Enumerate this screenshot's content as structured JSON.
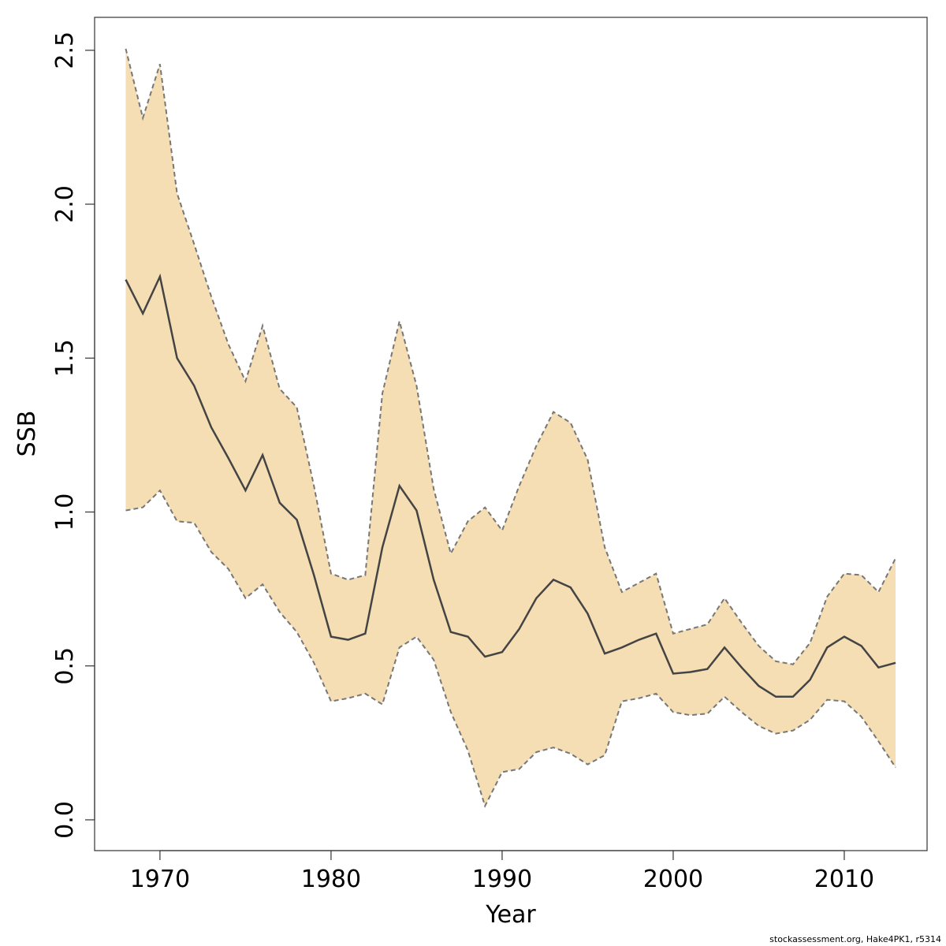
{
  "chart_data": {
    "type": "line",
    "x_label": "Year",
    "y_label": "SSB",
    "caption": "stockassessment.org, Hake4PK1, r5314",
    "x": [
      1968,
      1969,
      1970,
      1971,
      1972,
      1973,
      1974,
      1975,
      1976,
      1977,
      1978,
      1979,
      1980,
      1981,
      1982,
      1983,
      1984,
      1985,
      1986,
      1987,
      1988,
      1989,
      1990,
      1991,
      1992,
      1993,
      1994,
      1995,
      1996,
      1997,
      1998,
      1999,
      2000,
      2001,
      2002,
      2003,
      2004,
      2005,
      2006,
      2007,
      2008,
      2009,
      2010,
      2011,
      2012,
      2013
    ],
    "values": [
      1.755,
      1.645,
      1.765,
      1.5,
      1.41,
      1.275,
      1.175,
      1.07,
      1.185,
      1.03,
      0.975,
      0.795,
      0.595,
      0.585,
      0.605,
      0.885,
      1.085,
      1.005,
      0.78,
      0.61,
      0.595,
      0.53,
      0.545,
      0.62,
      0.72,
      0.78,
      0.755,
      0.67,
      0.54,
      0.56,
      0.585,
      0.605,
      0.475,
      0.48,
      0.49,
      0.56,
      0.495,
      0.435,
      0.4,
      0.4,
      0.455,
      0.56,
      0.595,
      0.565,
      0.495,
      0.51
    ],
    "upper": [
      2.505,
      2.28,
      2.455,
      2.035,
      1.87,
      1.7,
      1.545,
      1.425,
      1.605,
      1.4,
      1.34,
      1.085,
      0.8,
      0.78,
      0.795,
      1.385,
      1.62,
      1.41,
      1.075,
      0.865,
      0.97,
      1.015,
      0.94,
      1.085,
      1.215,
      1.325,
      1.29,
      1.17,
      0.885,
      0.74,
      0.77,
      0.8,
      0.605,
      0.62,
      0.635,
      0.72,
      0.64,
      0.565,
      0.515,
      0.505,
      0.575,
      0.725,
      0.8,
      0.795,
      0.74,
      0.85
    ],
    "lower": [
      1.005,
      1.015,
      1.07,
      0.97,
      0.965,
      0.87,
      0.815,
      0.72,
      0.765,
      0.675,
      0.61,
      0.51,
      0.385,
      0.395,
      0.41,
      0.375,
      0.56,
      0.595,
      0.52,
      0.35,
      0.225,
      0.045,
      0.155,
      0.165,
      0.22,
      0.235,
      0.215,
      0.18,
      0.21,
      0.385,
      0.395,
      0.41,
      0.35,
      0.34,
      0.345,
      0.4,
      0.35,
      0.305,
      0.28,
      0.29,
      0.325,
      0.39,
      0.385,
      0.335,
      0.255,
      0.17
    ],
    "line_color": "#444444",
    "band_color": "#f5deb3",
    "band_line_color": "#777777",
    "xlim": [
      1966.18,
      2014.84
    ],
    "ylim": [
      -0.1,
      2.607
    ],
    "xticks": [
      1970,
      1980,
      1990,
      2000,
      2010
    ],
    "yticks": [
      {
        "value": 0,
        "label": "0.0"
      },
      0.5,
      {
        "value": 1,
        "label": "1.0"
      },
      1.5,
      {
        "value": 2,
        "label": "2.0"
      },
      2.5
    ]
  }
}
